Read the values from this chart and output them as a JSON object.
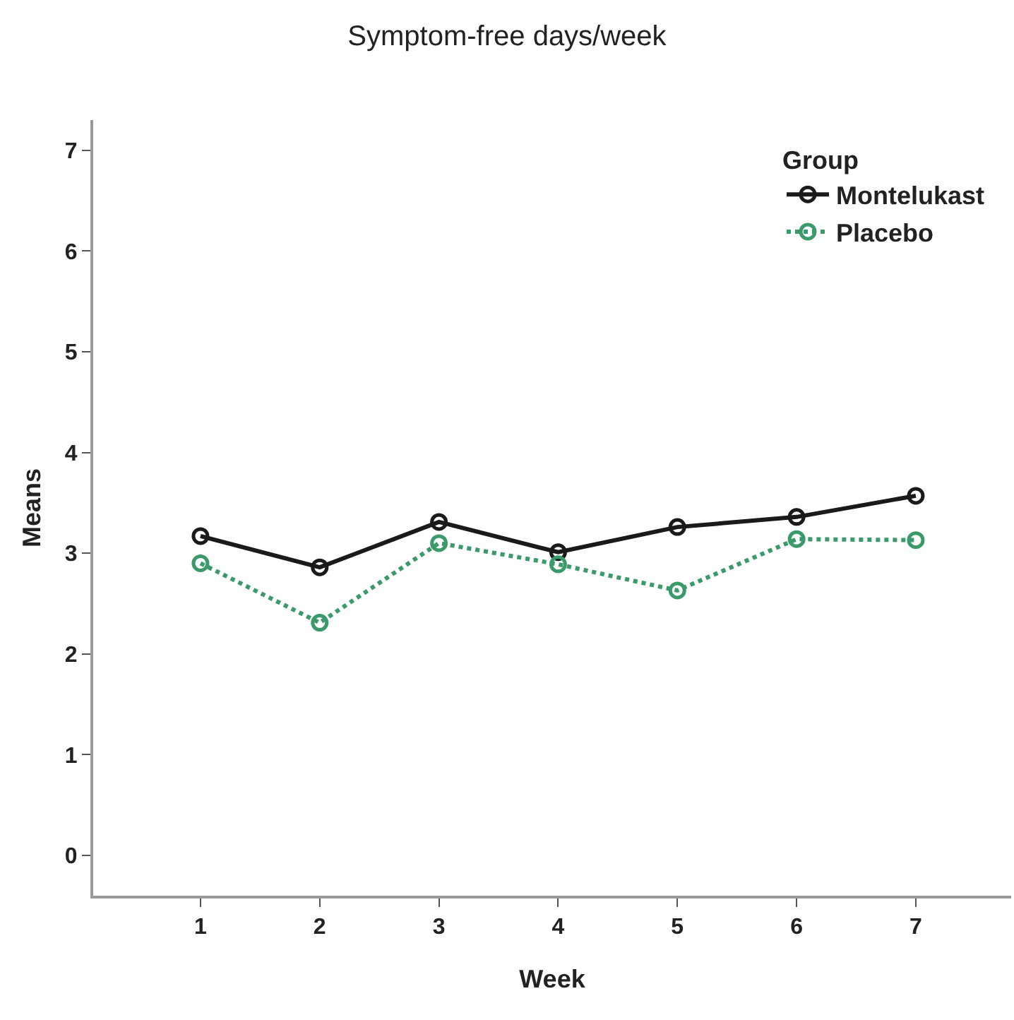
{
  "chart_data": {
    "type": "line",
    "title": "Symptom-free days/week",
    "xlabel": "Week",
    "ylabel": "Means",
    "legend_title": "Group",
    "x": [
      1,
      2,
      3,
      4,
      5,
      6,
      7
    ],
    "series": [
      {
        "name": "Montelukast",
        "color": "#1a1a1a",
        "values": [
          3.17,
          2.86,
          3.31,
          3.01,
          3.26,
          3.36,
          3.57
        ],
        "line_style": "solid"
      },
      {
        "name": "Placebo",
        "color": "#3a9a6a",
        "values": [
          2.9,
          2.31,
          3.1,
          2.89,
          2.63,
          3.14,
          3.13
        ],
        "line_style": "dotted"
      }
    ],
    "xlim": [
      0.1,
      7.8
    ],
    "xticks": [
      1,
      2,
      3,
      4,
      5,
      6,
      7
    ],
    "ylim": [
      -0.4,
      7.3
    ],
    "yticks": [
      0,
      1,
      2,
      3,
      4,
      5,
      6,
      7
    ],
    "grid": false,
    "legend": "top right",
    "marker": "circle"
  }
}
